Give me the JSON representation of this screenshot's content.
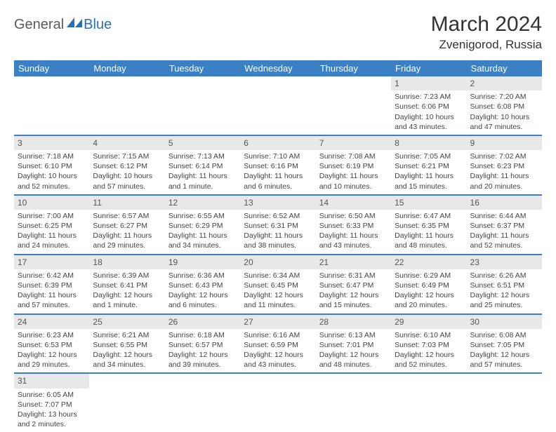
{
  "logo": {
    "part1": "General",
    "part2": "Blue"
  },
  "title": "March 2024",
  "location": "Zvenigorod, Russia",
  "header_bg": "#3b7fc4",
  "weekdays": [
    "Sunday",
    "Monday",
    "Tuesday",
    "Wednesday",
    "Thursday",
    "Friday",
    "Saturday"
  ],
  "weeks": [
    [
      {
        "n": "",
        "sr": "",
        "ss": "",
        "dl": ""
      },
      {
        "n": "",
        "sr": "",
        "ss": "",
        "dl": ""
      },
      {
        "n": "",
        "sr": "",
        "ss": "",
        "dl": ""
      },
      {
        "n": "",
        "sr": "",
        "ss": "",
        "dl": ""
      },
      {
        "n": "",
        "sr": "",
        "ss": "",
        "dl": ""
      },
      {
        "n": "1",
        "sr": "Sunrise: 7:23 AM",
        "ss": "Sunset: 6:06 PM",
        "dl": "Daylight: 10 hours and 43 minutes."
      },
      {
        "n": "2",
        "sr": "Sunrise: 7:20 AM",
        "ss": "Sunset: 6:08 PM",
        "dl": "Daylight: 10 hours and 47 minutes."
      }
    ],
    [
      {
        "n": "3",
        "sr": "Sunrise: 7:18 AM",
        "ss": "Sunset: 6:10 PM",
        "dl": "Daylight: 10 hours and 52 minutes."
      },
      {
        "n": "4",
        "sr": "Sunrise: 7:15 AM",
        "ss": "Sunset: 6:12 PM",
        "dl": "Daylight: 10 hours and 57 minutes."
      },
      {
        "n": "5",
        "sr": "Sunrise: 7:13 AM",
        "ss": "Sunset: 6:14 PM",
        "dl": "Daylight: 11 hours and 1 minute."
      },
      {
        "n": "6",
        "sr": "Sunrise: 7:10 AM",
        "ss": "Sunset: 6:16 PM",
        "dl": "Daylight: 11 hours and 6 minutes."
      },
      {
        "n": "7",
        "sr": "Sunrise: 7:08 AM",
        "ss": "Sunset: 6:19 PM",
        "dl": "Daylight: 11 hours and 10 minutes."
      },
      {
        "n": "8",
        "sr": "Sunrise: 7:05 AM",
        "ss": "Sunset: 6:21 PM",
        "dl": "Daylight: 11 hours and 15 minutes."
      },
      {
        "n": "9",
        "sr": "Sunrise: 7:02 AM",
        "ss": "Sunset: 6:23 PM",
        "dl": "Daylight: 11 hours and 20 minutes."
      }
    ],
    [
      {
        "n": "10",
        "sr": "Sunrise: 7:00 AM",
        "ss": "Sunset: 6:25 PM",
        "dl": "Daylight: 11 hours and 24 minutes."
      },
      {
        "n": "11",
        "sr": "Sunrise: 6:57 AM",
        "ss": "Sunset: 6:27 PM",
        "dl": "Daylight: 11 hours and 29 minutes."
      },
      {
        "n": "12",
        "sr": "Sunrise: 6:55 AM",
        "ss": "Sunset: 6:29 PM",
        "dl": "Daylight: 11 hours and 34 minutes."
      },
      {
        "n": "13",
        "sr": "Sunrise: 6:52 AM",
        "ss": "Sunset: 6:31 PM",
        "dl": "Daylight: 11 hours and 38 minutes."
      },
      {
        "n": "14",
        "sr": "Sunrise: 6:50 AM",
        "ss": "Sunset: 6:33 PM",
        "dl": "Daylight: 11 hours and 43 minutes."
      },
      {
        "n": "15",
        "sr": "Sunrise: 6:47 AM",
        "ss": "Sunset: 6:35 PM",
        "dl": "Daylight: 11 hours and 48 minutes."
      },
      {
        "n": "16",
        "sr": "Sunrise: 6:44 AM",
        "ss": "Sunset: 6:37 PM",
        "dl": "Daylight: 11 hours and 52 minutes."
      }
    ],
    [
      {
        "n": "17",
        "sr": "Sunrise: 6:42 AM",
        "ss": "Sunset: 6:39 PM",
        "dl": "Daylight: 11 hours and 57 minutes."
      },
      {
        "n": "18",
        "sr": "Sunrise: 6:39 AM",
        "ss": "Sunset: 6:41 PM",
        "dl": "Daylight: 12 hours and 1 minute."
      },
      {
        "n": "19",
        "sr": "Sunrise: 6:36 AM",
        "ss": "Sunset: 6:43 PM",
        "dl": "Daylight: 12 hours and 6 minutes."
      },
      {
        "n": "20",
        "sr": "Sunrise: 6:34 AM",
        "ss": "Sunset: 6:45 PM",
        "dl": "Daylight: 12 hours and 11 minutes."
      },
      {
        "n": "21",
        "sr": "Sunrise: 6:31 AM",
        "ss": "Sunset: 6:47 PM",
        "dl": "Daylight: 12 hours and 15 minutes."
      },
      {
        "n": "22",
        "sr": "Sunrise: 6:29 AM",
        "ss": "Sunset: 6:49 PM",
        "dl": "Daylight: 12 hours and 20 minutes."
      },
      {
        "n": "23",
        "sr": "Sunrise: 6:26 AM",
        "ss": "Sunset: 6:51 PM",
        "dl": "Daylight: 12 hours and 25 minutes."
      }
    ],
    [
      {
        "n": "24",
        "sr": "Sunrise: 6:23 AM",
        "ss": "Sunset: 6:53 PM",
        "dl": "Daylight: 12 hours and 29 minutes."
      },
      {
        "n": "25",
        "sr": "Sunrise: 6:21 AM",
        "ss": "Sunset: 6:55 PM",
        "dl": "Daylight: 12 hours and 34 minutes."
      },
      {
        "n": "26",
        "sr": "Sunrise: 6:18 AM",
        "ss": "Sunset: 6:57 PM",
        "dl": "Daylight: 12 hours and 39 minutes."
      },
      {
        "n": "27",
        "sr": "Sunrise: 6:16 AM",
        "ss": "Sunset: 6:59 PM",
        "dl": "Daylight: 12 hours and 43 minutes."
      },
      {
        "n": "28",
        "sr": "Sunrise: 6:13 AM",
        "ss": "Sunset: 7:01 PM",
        "dl": "Daylight: 12 hours and 48 minutes."
      },
      {
        "n": "29",
        "sr": "Sunrise: 6:10 AM",
        "ss": "Sunset: 7:03 PM",
        "dl": "Daylight: 12 hours and 52 minutes."
      },
      {
        "n": "30",
        "sr": "Sunrise: 6:08 AM",
        "ss": "Sunset: 7:05 PM",
        "dl": "Daylight: 12 hours and 57 minutes."
      }
    ],
    [
      {
        "n": "31",
        "sr": "Sunrise: 6:05 AM",
        "ss": "Sunset: 7:07 PM",
        "dl": "Daylight: 13 hours and 2 minutes."
      },
      {
        "n": "",
        "sr": "",
        "ss": "",
        "dl": ""
      },
      {
        "n": "",
        "sr": "",
        "ss": "",
        "dl": ""
      },
      {
        "n": "",
        "sr": "",
        "ss": "",
        "dl": ""
      },
      {
        "n": "",
        "sr": "",
        "ss": "",
        "dl": ""
      },
      {
        "n": "",
        "sr": "",
        "ss": "",
        "dl": ""
      },
      {
        "n": "",
        "sr": "",
        "ss": "",
        "dl": ""
      }
    ]
  ]
}
